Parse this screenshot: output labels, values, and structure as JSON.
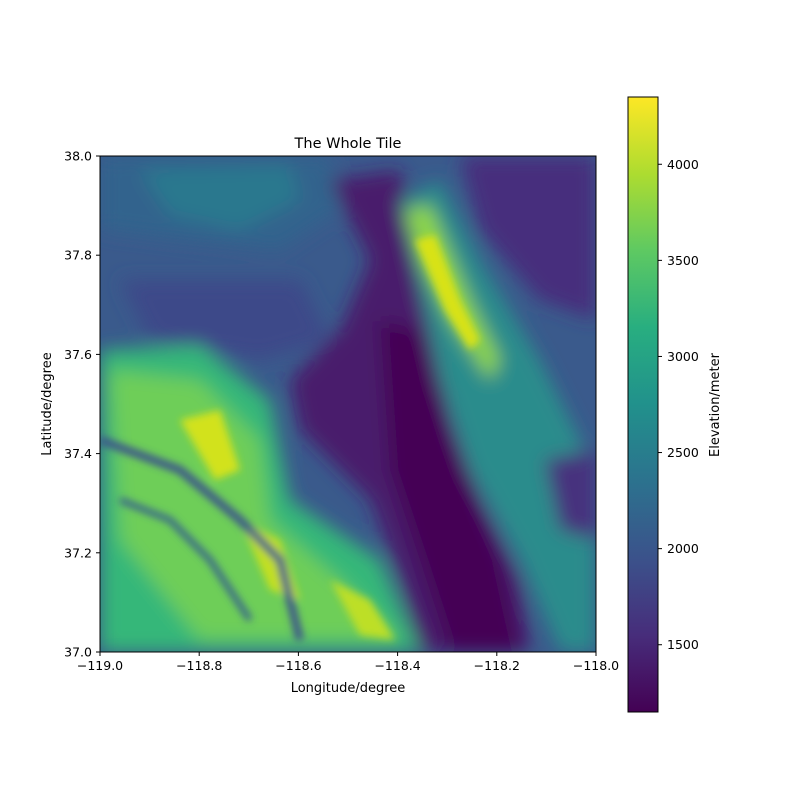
{
  "chart_data": {
    "type": "heatmap",
    "title": "The Whole Tile",
    "xlabel": "Longitude/degree",
    "ylabel": "Latitude/degree",
    "xlim": [
      -119.0,
      -118.0
    ],
    "ylim": [
      37.0,
      38.0
    ],
    "x_ticks": [
      -119.0,
      -118.8,
      -118.6,
      -118.4,
      -118.2,
      -118.0
    ],
    "x_tick_labels": [
      "−119.0",
      "−118.8",
      "−118.6",
      "−118.4",
      "−118.2",
      "−118.0"
    ],
    "y_ticks": [
      37.0,
      37.2,
      37.4,
      37.6,
      37.8,
      38.0
    ],
    "y_tick_labels": [
      "37.0",
      "37.2",
      "37.4",
      "37.6",
      "37.8",
      "38.0"
    ],
    "colormap": "viridis",
    "colorbar": {
      "label": "Elevation/meter",
      "range": [
        1150,
        4350
      ],
      "ticks": [
        1500,
        2000,
        2500,
        3000,
        3500,
        4000
      ],
      "tick_labels": [
        "1500",
        "2000",
        "2500",
        "3000",
        "3500",
        "4000"
      ]
    },
    "grid": false
  }
}
